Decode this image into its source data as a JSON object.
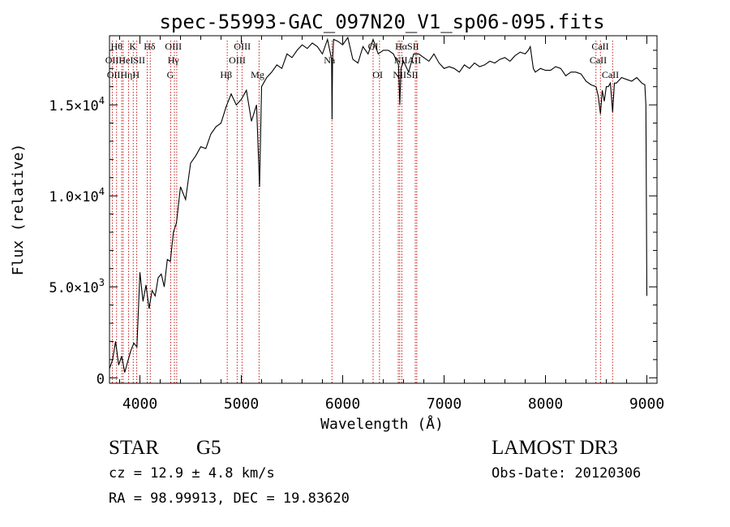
{
  "chart_data": {
    "type": "line",
    "title": "spec-55993-GAC_097N20_V1_sp06-095.fits",
    "xlabel": "Wavelength (Å)",
    "ylabel": "Flux (relative)",
    "xlim": [
      3700,
      9100
    ],
    "ylim": [
      -300,
      18800
    ],
    "x_ticks": [
      4000,
      5000,
      6000,
      7000,
      8000,
      9000
    ],
    "x_tick_labels": [
      "4000",
      "5000",
      "6000",
      "7000",
      "8000",
      "9000"
    ],
    "y_ticks": [
      0,
      5000,
      10000,
      15000
    ],
    "y_tick_labels": [
      {
        "base": "0",
        "exp": ""
      },
      {
        "base": "5.0×10",
        "exp": "3"
      },
      {
        "base": "1.0×10",
        "exp": "4"
      },
      {
        "base": "1.5×10",
        "exp": "4"
      }
    ],
    "series": [
      {
        "name": "flux",
        "x": [
          3700,
          3730,
          3760,
          3790,
          3820,
          3850,
          3880,
          3910,
          3940,
          3970,
          4000,
          4030,
          4060,
          4090,
          4120,
          4150,
          4180,
          4210,
          4240,
          4270,
          4300,
          4330,
          4360,
          4400,
          4450,
          4500,
          4550,
          4600,
          4650,
          4700,
          4750,
          4800,
          4850,
          4900,
          4950,
          5000,
          5050,
          5100,
          5150,
          5180,
          5200,
          5250,
          5300,
          5350,
          5400,
          5450,
          5500,
          5550,
          5600,
          5650,
          5700,
          5750,
          5800,
          5850,
          5890,
          5895,
          5900,
          5910,
          5950,
          6000,
          6050,
          6100,
          6150,
          6200,
          6250,
          6300,
          6350,
          6400,
          6450,
          6500,
          6550,
          6563,
          6575,
          6600,
          6650,
          6700,
          6750,
          6800,
          6850,
          6900,
          6950,
          7000,
          7050,
          7100,
          7150,
          7200,
          7250,
          7300,
          7350,
          7400,
          7450,
          7500,
          7550,
          7600,
          7650,
          7700,
          7750,
          7800,
          7830,
          7850,
          7880,
          7900,
          7950,
          8000,
          8050,
          8100,
          8150,
          8200,
          8250,
          8300,
          8350,
          8400,
          8450,
          8498,
          8520,
          8542,
          8560,
          8580,
          8600,
          8620,
          8640,
          8662,
          8680,
          8700,
          8750,
          8800,
          8850,
          8900,
          8950,
          8980,
          8990,
          9000
        ],
        "y": [
          500,
          1000,
          2000,
          700,
          1200,
          300,
          900,
          1500,
          1900,
          1700,
          5800,
          4200,
          5100,
          3800,
          4800,
          4500,
          5500,
          5700,
          5000,
          6500,
          6400,
          8000,
          8500,
          10500,
          9800,
          11800,
          12200,
          12700,
          12600,
          13400,
          13800,
          14000,
          14900,
          15600,
          15000,
          15300,
          15800,
          14100,
          15000,
          10500,
          16000,
          16500,
          16800,
          17200,
          17000,
          17800,
          17600,
          18000,
          18300,
          18100,
          18400,
          18200,
          17800,
          18600,
          17500,
          14200,
          17400,
          18600,
          18500,
          18300,
          18700,
          17500,
          17300,
          18200,
          17800,
          18600,
          17800,
          18000,
          18000,
          17800,
          17200,
          15000,
          17000,
          17400,
          16800,
          17800,
          17800,
          17600,
          17400,
          17800,
          17300,
          17000,
          17100,
          17000,
          16800,
          17200,
          17000,
          17300,
          17100,
          17200,
          17400,
          17300,
          17500,
          17600,
          17400,
          17700,
          17900,
          17800,
          18000,
          18200,
          17000,
          16800,
          17000,
          16900,
          16900,
          17100,
          17000,
          16600,
          16800,
          16800,
          16700,
          16300,
          16100,
          16000,
          15500,
          14500,
          15800,
          15200,
          16000,
          16000,
          16200,
          14600,
          16200,
          16200,
          16500,
          16400,
          16300,
          16500,
          16200,
          16100,
          15000,
          4500
        ]
      }
    ],
    "lines": [
      {
        "w": 3727,
        "top": "OII",
        "bottom": "OII"
      },
      {
        "w": 3770,
        "top": "Hθ",
        "bottom": "Hη"
      },
      {
        "w": 3820,
        "top": "",
        "bottom": "HeI"
      },
      {
        "w": 3835,
        "top": "Hθ",
        "bottom": "Hη"
      },
      {
        "w": 3889,
        "top": "",
        "bottom": "Hη"
      },
      {
        "w": 3934,
        "top": "K",
        "bottom": "SII"
      },
      {
        "w": 3969,
        "top": "",
        "bottom": "H"
      },
      {
        "w": 4072,
        "top": "",
        "bottom": "SII"
      },
      {
        "w": 4102,
        "top": "Hδ",
        "bottom": ""
      },
      {
        "w": 4304,
        "top": "",
        "bottom": "G"
      },
      {
        "w": 4340,
        "top": "Hγ",
        "bottom": ""
      },
      {
        "w": 4363,
        "top": "OIII",
        "bottom": ""
      },
      {
        "w": 4861,
        "top": "",
        "bottom": "Hβ"
      },
      {
        "w": 4959,
        "top": "OIII",
        "bottom": "OIII"
      },
      {
        "w": 5007,
        "top": "OIII",
        "bottom": ""
      },
      {
        "w": 5175,
        "top": "",
        "bottom": "Mg"
      },
      {
        "w": 5894,
        "top": "",
        "bottom": "Na"
      },
      {
        "w": 6300,
        "top": "OI",
        "bottom": "OI"
      },
      {
        "w": 6363,
        "top": "",
        "bottom": "OI"
      },
      {
        "w": 6548,
        "top": "",
        "bottom": "NII"
      },
      {
        "w": 6563,
        "top": "Hα",
        "bottom": ""
      },
      {
        "w": 6583,
        "top": "",
        "bottom": "NII"
      },
      {
        "w": 6716,
        "top": "SII",
        "bottom": "SII"
      },
      {
        "w": 6731,
        "top": "",
        "bottom": ""
      },
      {
        "w": 8498,
        "top": "CaII",
        "bottom": ""
      },
      {
        "w": 8542,
        "top": "",
        "bottom": "CaII"
      },
      {
        "w": 8662,
        "top": "",
        "bottom": "CaII"
      }
    ],
    "line_labels": [
      {
        "text": "Hθ",
        "w": 3770,
        "row": 1
      },
      {
        "text": "K",
        "w": 3930,
        "row": 1
      },
      {
        "text": "Hδ",
        "w": 4095,
        "row": 1
      },
      {
        "text": "OIII",
        "w": 4330,
        "row": 1
      },
      {
        "text": "OIII",
        "w": 5010,
        "row": 1
      },
      {
        "text": "OI",
        "w": 6300,
        "row": 1
      },
      {
        "text": "HαSII",
        "w": 6635,
        "row": 1
      },
      {
        "text": "CaII",
        "w": 8540,
        "row": 1
      },
      {
        "text": "OIIHeISII",
        "w": 3855,
        "row": 2
      },
      {
        "text": "Hγ",
        "w": 4330,
        "row": 2
      },
      {
        "text": "OIII",
        "w": 4960,
        "row": 2
      },
      {
        "text": "Na",
        "w": 5870,
        "row": 2
      },
      {
        "text": "NIIAII",
        "w": 6640,
        "row": 2
      },
      {
        "text": "CaII",
        "w": 8520,
        "row": 2
      },
      {
        "text": "OIIHηH",
        "w": 3835,
        "row": 3
      },
      {
        "text": "G",
        "w": 4300,
        "row": 3
      },
      {
        "text": "Hβ",
        "w": 4850,
        "row": 3
      },
      {
        "text": "Mg",
        "w": 5160,
        "row": 3
      },
      {
        "text": "OI",
        "w": 6345,
        "row": 3
      },
      {
        "text": "NIISII",
        "w": 6620,
        "row": 3
      },
      {
        "text": "CaII",
        "w": 8640,
        "row": 3
      }
    ]
  },
  "info": {
    "object_class": "STAR",
    "subclass": "G5",
    "survey": "LAMOST DR3",
    "redshift_text": "cz = 12.9 ± 4.8 km/s",
    "obs_date_text": "Obs-Date: 20120306",
    "coords_text": "RA =  98.99913, DEC =  19.83620"
  },
  "colors": {
    "line_marker": "#c00000",
    "spectrum": "#000000",
    "axes": "#000000"
  }
}
